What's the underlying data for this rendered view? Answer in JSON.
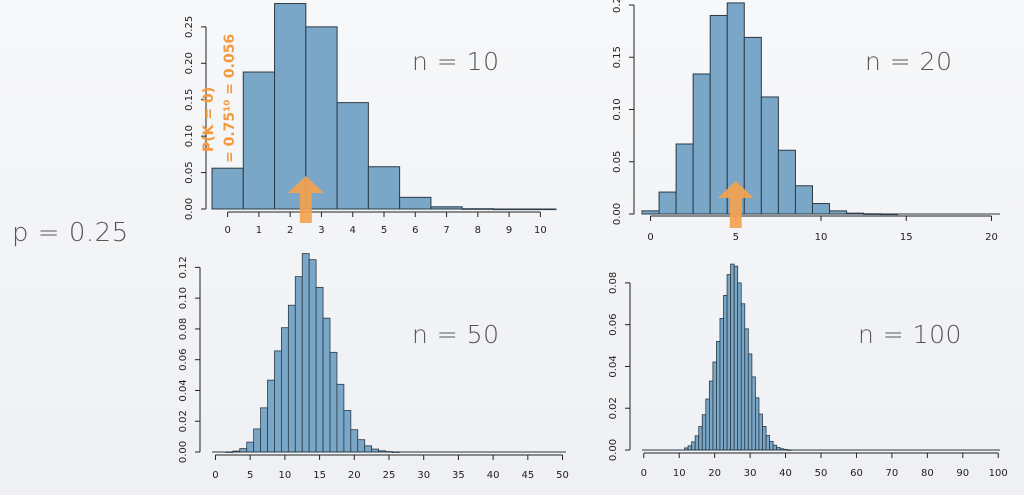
{
  "left_label": "p = 0.25",
  "annotation": {
    "line1": "P(K = 0)",
    "line2": "= 0.75¹⁰ = 0.056",
    "color": "#f39a3d"
  },
  "colors": {
    "bar_fill": "#7aa7c8",
    "bar_stroke": "#2b3a45",
    "arrow": "#f3a24f"
  },
  "chart_data": [
    {
      "type": "bar",
      "title": "n = 10",
      "x": [
        0,
        1,
        2,
        3,
        4,
        5,
        6,
        7,
        8,
        9,
        10
      ],
      "values": [
        0.056,
        0.188,
        0.282,
        0.25,
        0.146,
        0.058,
        0.016,
        0.003,
        0.0004,
        3e-05,
        1e-06
      ],
      "xticks": [
        0,
        1,
        2,
        3,
        4,
        5,
        6,
        7,
        8,
        9,
        10
      ],
      "yticks": [
        0.0,
        0.05,
        0.1,
        0.15,
        0.2,
        0.25
      ],
      "ytick_labels": [
        "0.00",
        "0.05",
        "0.10",
        "0.15",
        "0.20",
        "0.25"
      ],
      "xlim": [
        -0.5,
        10.5
      ],
      "ylim": [
        0,
        0.28
      ],
      "arrow_at": 2.5
    },
    {
      "type": "bar",
      "title": "n = 20",
      "x": [
        0,
        1,
        2,
        3,
        4,
        5,
        6,
        7,
        8,
        9,
        10,
        11,
        12,
        13,
        14,
        15,
        16,
        17,
        18,
        19,
        20
      ],
      "values": [
        0.003,
        0.021,
        0.067,
        0.134,
        0.19,
        0.202,
        0.169,
        0.112,
        0.061,
        0.027,
        0.01,
        0.003,
        0.0008,
        0.0002,
        3e-05,
        0,
        0,
        0,
        0,
        0,
        0
      ],
      "xticks": [
        0,
        5,
        10,
        15,
        20
      ],
      "yticks": [
        0.0,
        0.05,
        0.1,
        0.15,
        0.2
      ],
      "ytick_labels": [
        "0.00",
        "0.05",
        "0.10",
        "0.15",
        "0.2"
      ],
      "xlim": [
        -0.5,
        20.5
      ],
      "ylim": [
        0,
        0.2
      ],
      "arrow_at": 5
    },
    {
      "type": "bar",
      "title": "n = 50",
      "x": [
        0,
        1,
        2,
        3,
        4,
        5,
        6,
        7,
        8,
        9,
        10,
        11,
        12,
        13,
        14,
        15,
        16,
        17,
        18,
        19,
        20,
        21,
        22,
        23,
        24,
        25,
        26,
        27,
        28,
        29,
        30,
        31,
        32,
        33,
        34,
        35,
        36,
        37,
        38,
        39,
        40,
        41,
        42,
        43,
        44,
        45,
        46,
        47,
        48,
        49,
        50
      ],
      "values": [
        0,
        0,
        0.0001,
        0.0006,
        0.0022,
        0.0064,
        0.015,
        0.0287,
        0.0467,
        0.0657,
        0.0808,
        0.0954,
        0.114,
        0.129,
        0.125,
        0.107,
        0.087,
        0.0648,
        0.044,
        0.027,
        0.0145,
        0.008,
        0.004,
        0.0019,
        0.0008,
        0.0003,
        0.0001,
        0,
        0,
        0,
        0,
        0,
        0,
        0,
        0,
        0,
        0,
        0,
        0,
        0,
        0,
        0,
        0,
        0,
        0,
        0,
        0,
        0,
        0,
        0,
        0
      ],
      "xticks": [
        0,
        5,
        10,
        15,
        20,
        25,
        30,
        35,
        40,
        45,
        50
      ],
      "yticks": [
        0.0,
        0.02,
        0.04,
        0.06,
        0.08,
        0.1,
        0.12
      ],
      "ytick_labels": [
        "0.00",
        "0.02",
        "0.04",
        "0.06",
        "0.08",
        "0.10",
        "0.12"
      ],
      "xlim": [
        -0.5,
        50.5
      ],
      "ylim": [
        0,
        0.13
      ]
    },
    {
      "type": "bar",
      "title": "n = 100",
      "x": [
        12,
        13,
        14,
        15,
        16,
        17,
        18,
        19,
        20,
        21,
        22,
        23,
        24,
        25,
        26,
        27,
        28,
        29,
        30,
        31,
        32,
        33,
        34,
        35,
        36,
        37,
        38,
        39,
        40,
        41
      ],
      "values": [
        0.001,
        0.002,
        0.0039,
        0.0068,
        0.0112,
        0.0169,
        0.0244,
        0.033,
        0.0421,
        0.052,
        0.063,
        0.074,
        0.084,
        0.089,
        0.088,
        0.08,
        0.07,
        0.058,
        0.046,
        0.035,
        0.025,
        0.0172,
        0.0113,
        0.007,
        0.0041,
        0.0023,
        0.0012,
        0.0006,
        0.0003,
        0.0001
      ],
      "xticks": [
        0,
        10,
        20,
        30,
        40,
        50,
        60,
        70,
        80,
        90,
        100
      ],
      "yticks": [
        0.0,
        0.02,
        0.04,
        0.06,
        0.08
      ],
      "ytick_labels": [
        "0.00",
        "0.02",
        "0.04",
        "0.06",
        "0.08"
      ],
      "xlim": [
        -0.5,
        100.5
      ],
      "ylim": [
        0,
        0.09
      ]
    }
  ]
}
